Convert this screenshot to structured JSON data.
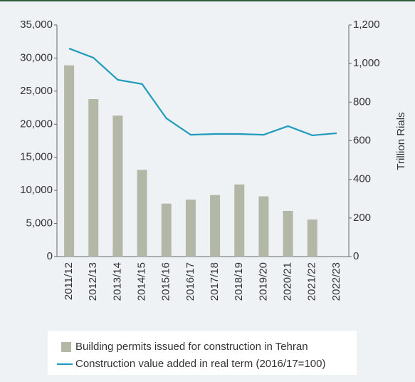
{
  "chart_data": {
    "type": "bar_line",
    "y2label": "Trillion Rials",
    "categories": [
      "2011/12",
      "2012/13",
      "2013/14",
      "2014/15",
      "2015/16",
      "2016/17",
      "2017/18",
      "2018/19",
      "2019/20",
      "2020/21",
      "2021/22",
      "2022/23"
    ],
    "series": [
      {
        "name": "Building permits issued for construction in Tehran",
        "type": "bar",
        "color": "#b3b8a6",
        "axis": "y",
        "values": [
          28900,
          23800,
          21300,
          13100,
          8000,
          8600,
          9300,
          10900,
          9100,
          6900,
          5600,
          null
        ]
      },
      {
        "name": "Construction value added in real term (2016/17=100)",
        "type": "line",
        "color": "#1e9bbd",
        "axis": "y2",
        "values": [
          1078,
          1030,
          916,
          894,
          716,
          631,
          635,
          635,
          631,
          676,
          628,
          639
        ]
      }
    ],
    "ylim": [
      0,
      35000
    ],
    "yticks": [
      0,
      {
        "value": 5000,
        "label": "5,000"
      },
      {
        "value": 10000,
        "label": "10,000"
      },
      {
        "value": 15000,
        "label": "15,000"
      },
      {
        "value": 20000,
        "label": "20,000"
      },
      {
        "value": 25000,
        "label": "25,000"
      },
      {
        "value": 30000,
        "label": "30,000"
      },
      {
        "value": 35000,
        "label": "35,000"
      }
    ],
    "y2lim": [
      0,
      1200
    ],
    "y2ticks": [
      0,
      200,
      400,
      600,
      800,
      {
        "value": 1000,
        "label": "1,000"
      },
      {
        "value": 1200,
        "label": "1,200"
      }
    ],
    "legend": "bottom"
  }
}
